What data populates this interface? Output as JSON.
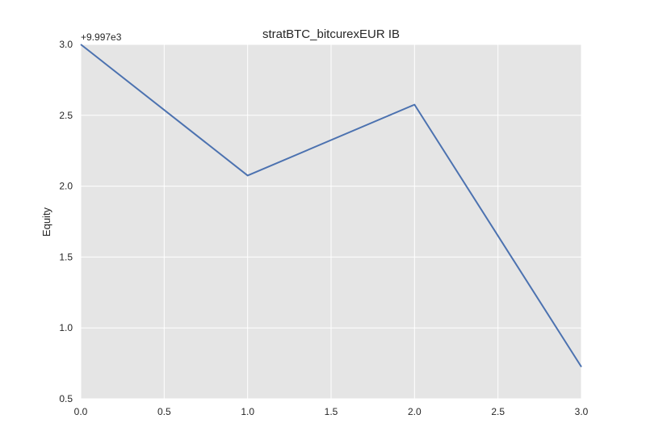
{
  "chart_data": {
    "type": "line",
    "title": "stratBTC_bitcurexEUR IB",
    "xlabel": "",
    "ylabel": "Equity",
    "y_offset_label": "+9.997e3",
    "xlim": [
      0,
      3
    ],
    "ylim": [
      0.5,
      3.0
    ],
    "x_ticks": [
      "0.0",
      "0.5",
      "1.0",
      "1.5",
      "2.0",
      "2.5",
      "3.0"
    ],
    "y_ticks": [
      "0.5",
      "1.0",
      "1.5",
      "2.0",
      "2.5",
      "3.0"
    ],
    "grid": true,
    "background": "#e5e5e5",
    "grid_color": "#ffffff",
    "series": [
      {
        "color": "#4c72b0",
        "x": [
          0,
          1,
          2,
          3
        ],
        "y": [
          3.0,
          2.075,
          2.575,
          0.725
        ]
      }
    ]
  }
}
